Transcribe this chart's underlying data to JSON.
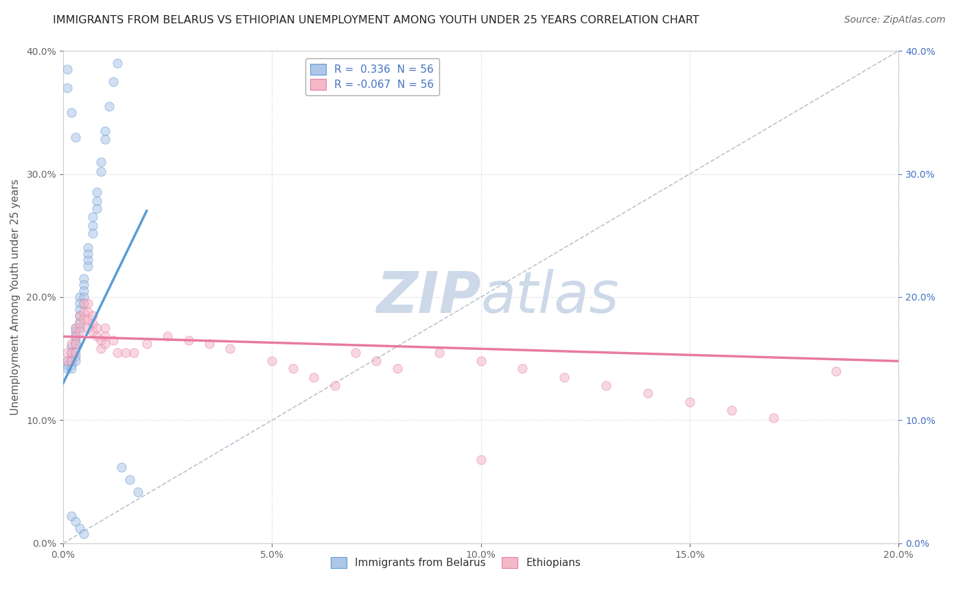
{
  "title": "IMMIGRANTS FROM BELARUS VS ETHIOPIAN UNEMPLOYMENT AMONG YOUTH UNDER 25 YEARS CORRELATION CHART",
  "source": "Source: ZipAtlas.com",
  "ylabel": "Unemployment Among Youth under 25 years",
  "xlim": [
    0.0,
    0.2
  ],
  "ylim": [
    0.0,
    0.4
  ],
  "watermark_zip": "ZIP",
  "watermark_atlas": "atlas",
  "legend_label_blue": "R =  0.336  N = 56",
  "legend_label_pink": "R = -0.067  N = 56",
  "blue_scatter_x": [
    0.001,
    0.001,
    0.001,
    0.002,
    0.002,
    0.002,
    0.002,
    0.002,
    0.002,
    0.003,
    0.003,
    0.003,
    0.003,
    0.003,
    0.003,
    0.003,
    0.003,
    0.004,
    0.004,
    0.004,
    0.004,
    0.004,
    0.004,
    0.005,
    0.005,
    0.005,
    0.005,
    0.005,
    0.006,
    0.006,
    0.006,
    0.006,
    0.007,
    0.007,
    0.007,
    0.008,
    0.008,
    0.008,
    0.009,
    0.009,
    0.01,
    0.01,
    0.011,
    0.012,
    0.013,
    0.014,
    0.016,
    0.018,
    0.001,
    0.001,
    0.002,
    0.003,
    0.002,
    0.003,
    0.004,
    0.005
  ],
  "blue_scatter_y": [
    0.148,
    0.145,
    0.142,
    0.16,
    0.155,
    0.15,
    0.148,
    0.145,
    0.142,
    0.175,
    0.172,
    0.168,
    0.165,
    0.162,
    0.158,
    0.152,
    0.148,
    0.2,
    0.195,
    0.19,
    0.185,
    0.18,
    0.175,
    0.215,
    0.21,
    0.205,
    0.2,
    0.195,
    0.24,
    0.235,
    0.23,
    0.225,
    0.265,
    0.258,
    0.252,
    0.285,
    0.278,
    0.272,
    0.31,
    0.302,
    0.335,
    0.328,
    0.355,
    0.375,
    0.39,
    0.062,
    0.052,
    0.042,
    0.385,
    0.37,
    0.35,
    0.33,
    0.022,
    0.018,
    0.012,
    0.008
  ],
  "pink_scatter_x": [
    0.001,
    0.001,
    0.002,
    0.002,
    0.002,
    0.003,
    0.003,
    0.003,
    0.003,
    0.004,
    0.004,
    0.004,
    0.005,
    0.005,
    0.005,
    0.006,
    0.006,
    0.006,
    0.006,
    0.007,
    0.007,
    0.007,
    0.008,
    0.008,
    0.009,
    0.009,
    0.01,
    0.01,
    0.01,
    0.012,
    0.013,
    0.015,
    0.017,
    0.02,
    0.025,
    0.03,
    0.035,
    0.04,
    0.05,
    0.055,
    0.06,
    0.065,
    0.07,
    0.075,
    0.08,
    0.09,
    0.1,
    0.11,
    0.12,
    0.13,
    0.14,
    0.15,
    0.16,
    0.17,
    0.185,
    0.1
  ],
  "pink_scatter_y": [
    0.155,
    0.148,
    0.162,
    0.155,
    0.148,
    0.175,
    0.168,
    0.162,
    0.155,
    0.185,
    0.178,
    0.172,
    0.195,
    0.188,
    0.182,
    0.195,
    0.188,
    0.182,
    0.175,
    0.185,
    0.178,
    0.172,
    0.175,
    0.168,
    0.165,
    0.158,
    0.175,
    0.168,
    0.162,
    0.165,
    0.155,
    0.155,
    0.155,
    0.162,
    0.168,
    0.165,
    0.162,
    0.158,
    0.148,
    0.142,
    0.135,
    0.128,
    0.155,
    0.148,
    0.142,
    0.155,
    0.148,
    0.142,
    0.135,
    0.128,
    0.122,
    0.115,
    0.108,
    0.102,
    0.14,
    0.068
  ],
  "blue_line_x": [
    0.0,
    0.02
  ],
  "blue_line_y": [
    0.13,
    0.27
  ],
  "pink_line_x": [
    0.0,
    0.2
  ],
  "pink_line_y": [
    0.168,
    0.148
  ],
  "grey_line_x": [
    0.0,
    0.2
  ],
  "grey_line_y": [
    0.0,
    0.4
  ],
  "scatter_alpha": 0.55,
  "scatter_size": 90,
  "blue_color": "#5b9bd5",
  "blue_fill": "#aec6e8",
  "pink_color": "#e87aa0",
  "pink_fill": "#f4b8c8",
  "grid_color": "#cccccc",
  "title_fontsize": 11.5,
  "source_fontsize": 10,
  "ylabel_fontsize": 11,
  "tick_fontsize": 10,
  "watermark_color": "#cdd9e8",
  "background_color": "#ffffff",
  "right_tick_color": "#4472c4"
}
